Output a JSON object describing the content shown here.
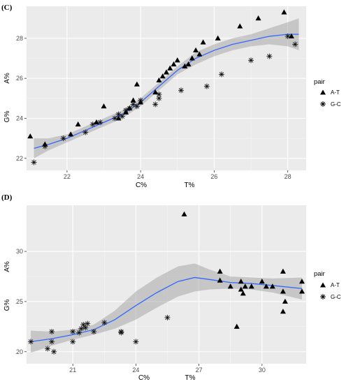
{
  "chart_data": [
    {
      "type": "scatter",
      "panel_label": "(C)",
      "xlabel_left": "C%",
      "xlabel_right": "T%",
      "ylabel_top": "A%",
      "ylabel_bottom": "G%",
      "xlim": [
        20.9,
        28.5
      ],
      "ylim": [
        21.4,
        29.6
      ],
      "xticks": [
        22,
        24,
        26,
        28
      ],
      "yticks": [
        22,
        24,
        26,
        28
      ],
      "grid": true,
      "legend_position": "right",
      "legend": {
        "title": "pair",
        "entries": [
          {
            "label": "A-T",
            "marker": "triangle"
          },
          {
            "label": "G-C",
            "marker": "star"
          }
        ]
      },
      "series": [
        {
          "name": "A-T",
          "marker": "triangle",
          "points": [
            [
              21.0,
              23.1
            ],
            [
              21.4,
              22.7
            ],
            [
              22.1,
              23.2
            ],
            [
              22.3,
              23.7
            ],
            [
              22.8,
              23.8
            ],
            [
              23.0,
              24.6
            ],
            [
              23.4,
              24.0
            ],
            [
              23.6,
              24.3
            ],
            [
              23.7,
              24.5
            ],
            [
              23.8,
              24.9
            ],
            [
              23.9,
              25.7
            ],
            [
              24.0,
              24.8
            ],
            [
              24.4,
              25.3
            ],
            [
              24.5,
              25.9
            ],
            [
              24.6,
              26.1
            ],
            [
              24.7,
              26.3
            ],
            [
              24.8,
              26.5
            ],
            [
              24.9,
              26.7
            ],
            [
              25.0,
              26.9
            ],
            [
              25.2,
              26.6
            ],
            [
              25.3,
              26.7
            ],
            [
              25.4,
              27.0
            ],
            [
              25.5,
              27.4
            ],
            [
              25.6,
              27.2
            ],
            [
              25.7,
              27.8
            ],
            [
              26.1,
              28.0
            ],
            [
              26.7,
              28.6
            ],
            [
              27.2,
              29.0
            ],
            [
              27.9,
              29.3
            ],
            [
              28.1,
              28.1
            ]
          ]
        },
        {
          "name": "G-C",
          "marker": "star",
          "points": [
            [
              21.1,
              21.8
            ],
            [
              21.4,
              22.6
            ],
            [
              21.9,
              23.0
            ],
            [
              22.5,
              23.3
            ],
            [
              22.7,
              23.7
            ],
            [
              22.9,
              23.8
            ],
            [
              23.3,
              24.0
            ],
            [
              23.4,
              24.2
            ],
            [
              23.5,
              24.1
            ],
            [
              23.6,
              24.4
            ],
            [
              23.7,
              24.5
            ],
            [
              23.8,
              24.7
            ],
            [
              23.9,
              24.6
            ],
            [
              24.0,
              24.9
            ],
            [
              24.4,
              24.7
            ],
            [
              24.5,
              25.0
            ],
            [
              24.5,
              25.2
            ],
            [
              25.1,
              25.4
            ],
            [
              25.8,
              25.6
            ],
            [
              26.2,
              26.2
            ],
            [
              27.0,
              26.9
            ],
            [
              27.5,
              27.1
            ],
            [
              28.0,
              28.1
            ],
            [
              28.2,
              27.7
            ]
          ]
        }
      ],
      "smooth": [
        [
          21.1,
          22.5
        ],
        [
          21.5,
          22.7
        ],
        [
          22.0,
          23.0
        ],
        [
          22.5,
          23.4
        ],
        [
          23.0,
          23.8
        ],
        [
          23.5,
          24.2
        ],
        [
          24.0,
          24.8
        ],
        [
          24.5,
          25.6
        ],
        [
          25.0,
          26.4
        ],
        [
          25.5,
          27.0
        ],
        [
          26.0,
          27.4
        ],
        [
          26.5,
          27.7
        ],
        [
          27.0,
          27.9
        ],
        [
          27.5,
          28.1
        ],
        [
          28.0,
          28.2
        ],
        [
          28.3,
          28.2
        ]
      ],
      "band_lower": [
        [
          21.1,
          22.0
        ],
        [
          21.5,
          22.4
        ],
        [
          22.0,
          22.8
        ],
        [
          22.5,
          23.2
        ],
        [
          23.0,
          23.6
        ],
        [
          23.5,
          24.0
        ],
        [
          24.0,
          24.6
        ],
        [
          24.5,
          25.4
        ],
        [
          25.0,
          26.2
        ],
        [
          25.5,
          26.7
        ],
        [
          26.0,
          27.1
        ],
        [
          26.5,
          27.4
        ],
        [
          27.0,
          27.6
        ],
        [
          27.5,
          27.7
        ],
        [
          28.0,
          27.6
        ],
        [
          28.3,
          27.4
        ]
      ],
      "band_upper": [
        [
          21.1,
          23.0
        ],
        [
          21.5,
          23.0
        ],
        [
          22.0,
          23.2
        ],
        [
          22.5,
          23.6
        ],
        [
          23.0,
          24.0
        ],
        [
          23.5,
          24.4
        ],
        [
          24.0,
          25.0
        ],
        [
          24.5,
          25.8
        ],
        [
          25.0,
          26.6
        ],
        [
          25.5,
          27.3
        ],
        [
          26.0,
          27.7
        ],
        [
          26.5,
          28.0
        ],
        [
          27.0,
          28.2
        ],
        [
          27.5,
          28.5
        ],
        [
          28.0,
          28.8
        ],
        [
          28.3,
          29.0
        ]
      ]
    },
    {
      "type": "scatter",
      "panel_label": "(D)",
      "xlabel_left": "C%",
      "xlabel_right": "T%",
      "ylabel_top": "A%",
      "ylabel_bottom": "G%",
      "xlim": [
        18.8,
        32.1
      ],
      "ylim": [
        18.8,
        34.6
      ],
      "xticks": [
        21,
        24,
        27,
        30
      ],
      "yticks": [
        20,
        25,
        30
      ],
      "grid": true,
      "legend_position": "right",
      "legend": {
        "title": "pair",
        "entries": [
          {
            "label": "A-T",
            "marker": "triangle"
          },
          {
            "label": "G-C",
            "marker": "star"
          }
        ]
      },
      "series": [
        {
          "name": "A-T",
          "marker": "triangle",
          "points": [
            [
              26.3,
              33.7
            ],
            [
              28.0,
              28.0
            ],
            [
              28.0,
              27.1
            ],
            [
              28.5,
              26.5
            ],
            [
              28.8,
              22.5
            ],
            [
              29.0,
              27.0
            ],
            [
              29.0,
              26.2
            ],
            [
              29.1,
              25.8
            ],
            [
              29.2,
              26.5
            ],
            [
              29.5,
              26.5
            ],
            [
              30.0,
              27.0
            ],
            [
              30.2,
              26.5
            ],
            [
              30.5,
              26.5
            ],
            [
              31.0,
              28.0
            ],
            [
              31.0,
              26.0
            ],
            [
              31.1,
              25.0
            ],
            [
              31.0,
              24.0
            ],
            [
              31.9,
              27.0
            ],
            [
              31.9,
              26.0
            ]
          ]
        },
        {
          "name": "G-C",
          "marker": "star",
          "points": [
            [
              19.0,
              21.0
            ],
            [
              19.8,
              20.3
            ],
            [
              20.0,
              22.0
            ],
            [
              20.0,
              21.0
            ],
            [
              20.1,
              20.0
            ],
            [
              21.0,
              22.0
            ],
            [
              21.0,
              21.0
            ],
            [
              21.3,
              21.9
            ],
            [
              21.4,
              22.3
            ],
            [
              21.5,
              22.7
            ],
            [
              21.6,
              22.4
            ],
            [
              21.7,
              22.8
            ],
            [
              22.0,
              22.0
            ],
            [
              22.5,
              22.9
            ],
            [
              23.3,
              22.0
            ],
            [
              23.3,
              21.9
            ],
            [
              24.0,
              21.0
            ],
            [
              25.5,
              23.4
            ]
          ]
        }
      ],
      "smooth": [
        [
          19.0,
          21.0
        ],
        [
          20.0,
          21.3
        ],
        [
          21.0,
          21.7
        ],
        [
          22.0,
          22.2
        ],
        [
          23.0,
          23.2
        ],
        [
          24.0,
          24.6
        ],
        [
          25.0,
          25.9
        ],
        [
          26.0,
          27.0
        ],
        [
          26.8,
          27.4
        ],
        [
          27.5,
          27.2
        ],
        [
          28.5,
          26.9
        ],
        [
          29.5,
          26.8
        ],
        [
          30.5,
          26.6
        ],
        [
          31.9,
          26.3
        ]
      ],
      "band_lower": [
        [
          19.0,
          19.9
        ],
        [
          20.0,
          20.6
        ],
        [
          21.0,
          21.2
        ],
        [
          22.0,
          21.7
        ],
        [
          23.0,
          22.3
        ],
        [
          24.0,
          23.2
        ],
        [
          25.0,
          24.4
        ],
        [
          26.0,
          25.5
        ],
        [
          26.8,
          26.0
        ],
        [
          27.5,
          26.2
        ],
        [
          28.5,
          26.3
        ],
        [
          29.5,
          26.2
        ],
        [
          30.5,
          25.9
        ],
        [
          31.9,
          25.2
        ]
      ],
      "band_upper": [
        [
          19.0,
          22.1
        ],
        [
          20.0,
          22.0
        ],
        [
          21.0,
          22.2
        ],
        [
          22.0,
          22.7
        ],
        [
          23.0,
          24.1
        ],
        [
          24.0,
          26.0
        ],
        [
          25.0,
          27.4
        ],
        [
          26.0,
          28.5
        ],
        [
          26.8,
          28.8
        ],
        [
          27.5,
          28.2
        ],
        [
          28.5,
          27.5
        ],
        [
          29.5,
          27.4
        ],
        [
          30.5,
          27.3
        ],
        [
          31.9,
          27.4
        ]
      ]
    }
  ]
}
